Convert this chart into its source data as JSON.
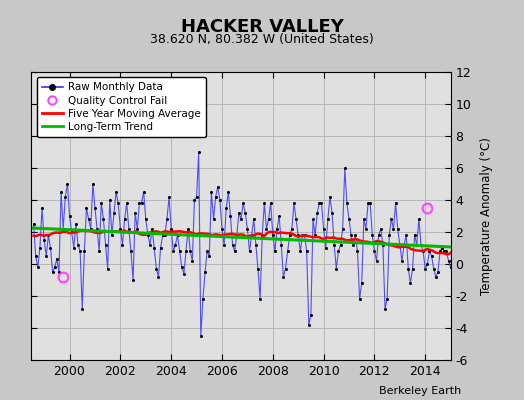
{
  "title": "HACKER VALLEY",
  "subtitle": "38.620 N, 80.382 W (United States)",
  "ylabel": "Temperature Anomaly (°C)",
  "credit": "Berkeley Earth",
  "bg_color": "#c8c8c8",
  "plot_bg_color": "#e0e0e0",
  "ylim": [
    -6,
    12
  ],
  "yticks": [
    -6,
    -4,
    -2,
    0,
    2,
    4,
    6,
    8,
    10,
    12
  ],
  "xlim_start": 1998.5,
  "xlim_end": 2015.0,
  "xticks": [
    2000,
    2002,
    2004,
    2006,
    2008,
    2010,
    2012,
    2014
  ],
  "line_color": "#3333ff",
  "marker_color": "#000000",
  "ma_color": "#ff0000",
  "trend_color": "#00bb00",
  "qc_color": "#ff44ff",
  "grid_color": "#b0b0b0",
  "raw_data": [
    2.5,
    0.5,
    -0.2,
    1.0,
    3.5,
    1.5,
    0.5,
    1.8,
    1.0,
    -0.5,
    -0.2,
    0.3,
    -0.5,
    4.5,
    2.2,
    4.2,
    5.0,
    3.0,
    2.0,
    1.0,
    2.5,
    1.2,
    0.8,
    -2.8,
    0.8,
    3.5,
    2.8,
    2.2,
    5.0,
    3.5,
    2.2,
    0.8,
    3.8,
    2.8,
    1.2,
    -0.3,
    4.0,
    1.8,
    3.2,
    4.5,
    3.8,
    2.2,
    1.2,
    2.8,
    3.8,
    2.2,
    0.8,
    -1.0,
    3.2,
    2.2,
    3.8,
    3.8,
    4.5,
    2.8,
    1.8,
    1.2,
    2.2,
    1.0,
    -0.3,
    -0.8,
    1.0,
    1.8,
    1.8,
    2.8,
    4.2,
    2.2,
    0.8,
    1.2,
    1.8,
    0.8,
    -0.2,
    -0.6,
    0.8,
    2.2,
    0.8,
    0.2,
    4.0,
    4.2,
    7.0,
    -4.5,
    -2.2,
    -0.5,
    0.8,
    0.5,
    4.5,
    2.8,
    4.2,
    4.8,
    4.0,
    2.2,
    1.2,
    3.5,
    4.5,
    3.0,
    1.2,
    0.8,
    1.8,
    3.2,
    2.8,
    3.8,
    3.2,
    2.2,
    0.8,
    1.8,
    2.8,
    1.2,
    -0.3,
    -2.2,
    1.8,
    3.8,
    2.2,
    2.8,
    3.8,
    1.8,
    0.8,
    2.2,
    3.0,
    1.2,
    -0.8,
    -0.3,
    0.8,
    1.8,
    2.2,
    3.8,
    2.8,
    1.8,
    0.8,
    1.8,
    1.8,
    0.8,
    -3.8,
    -3.2,
    2.8,
    1.8,
    3.2,
    3.8,
    3.8,
    2.2,
    1.0,
    2.8,
    4.2,
    3.2,
    1.2,
    -0.3,
    0.8,
    1.2,
    2.2,
    6.0,
    3.8,
    2.8,
    1.8,
    1.2,
    1.8,
    0.8,
    -2.2,
    -1.2,
    2.8,
    2.2,
    3.8,
    3.8,
    1.8,
    0.8,
    0.2,
    1.8,
    2.2,
    1.2,
    -2.8,
    -2.2,
    1.8,
    2.8,
    2.2,
    3.8,
    2.2,
    1.2,
    0.2,
    1.2,
    1.8,
    -0.3,
    -1.2,
    -0.3,
    1.8,
    1.2,
    2.8,
    1.2,
    0.8,
    -0.3,
    -0.0,
    0.8,
    0.5,
    -0.3,
    -0.8,
    -0.5,
    0.8,
    1.0,
    0.8,
    0.8,
    0.2,
    -0.2,
    -0.5,
    0.0
  ],
  "qc_fail_times": [
    1999.75,
    2014.08
  ],
  "qc_fail_values": [
    -0.8,
    3.5
  ],
  "start_year": 1998,
  "start_month": 8
}
